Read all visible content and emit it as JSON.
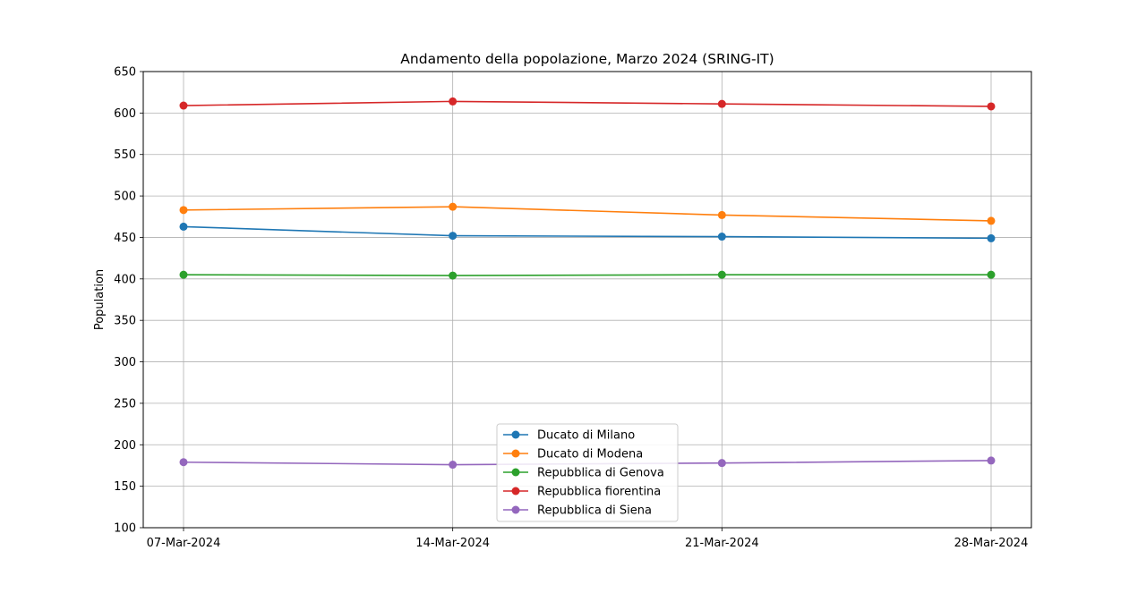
{
  "chart_data": {
    "type": "line",
    "title": "Andamento della popolazione, Marzo 2024 (SRING-IT)",
    "xlabel": "",
    "ylabel": "Population",
    "categories": [
      "07-Mar-2024",
      "14-Mar-2024",
      "21-Mar-2024",
      "28-Mar-2024"
    ],
    "ylim": [
      100,
      650
    ],
    "yticks": [
      100,
      150,
      200,
      250,
      300,
      350,
      400,
      450,
      500,
      550,
      600,
      650
    ],
    "grid": true,
    "legend_position": "bottom-center",
    "series": [
      {
        "name": "Ducato di Milano",
        "color": "#1f77b4",
        "values": [
          463,
          452,
          451,
          449
        ]
      },
      {
        "name": "Ducato di Modena",
        "color": "#ff7f0e",
        "values": [
          483,
          487,
          477,
          470
        ]
      },
      {
        "name": "Repubblica di Genova",
        "color": "#2ca02c",
        "values": [
          405,
          404,
          405,
          405
        ]
      },
      {
        "name": "Repubblica fiorentina",
        "color": "#d62728",
        "values": [
          609,
          614,
          611,
          608
        ]
      },
      {
        "name": "Repubblica di Siena",
        "color": "#9467bd",
        "values": [
          179,
          176,
          178,
          181
        ]
      }
    ]
  }
}
